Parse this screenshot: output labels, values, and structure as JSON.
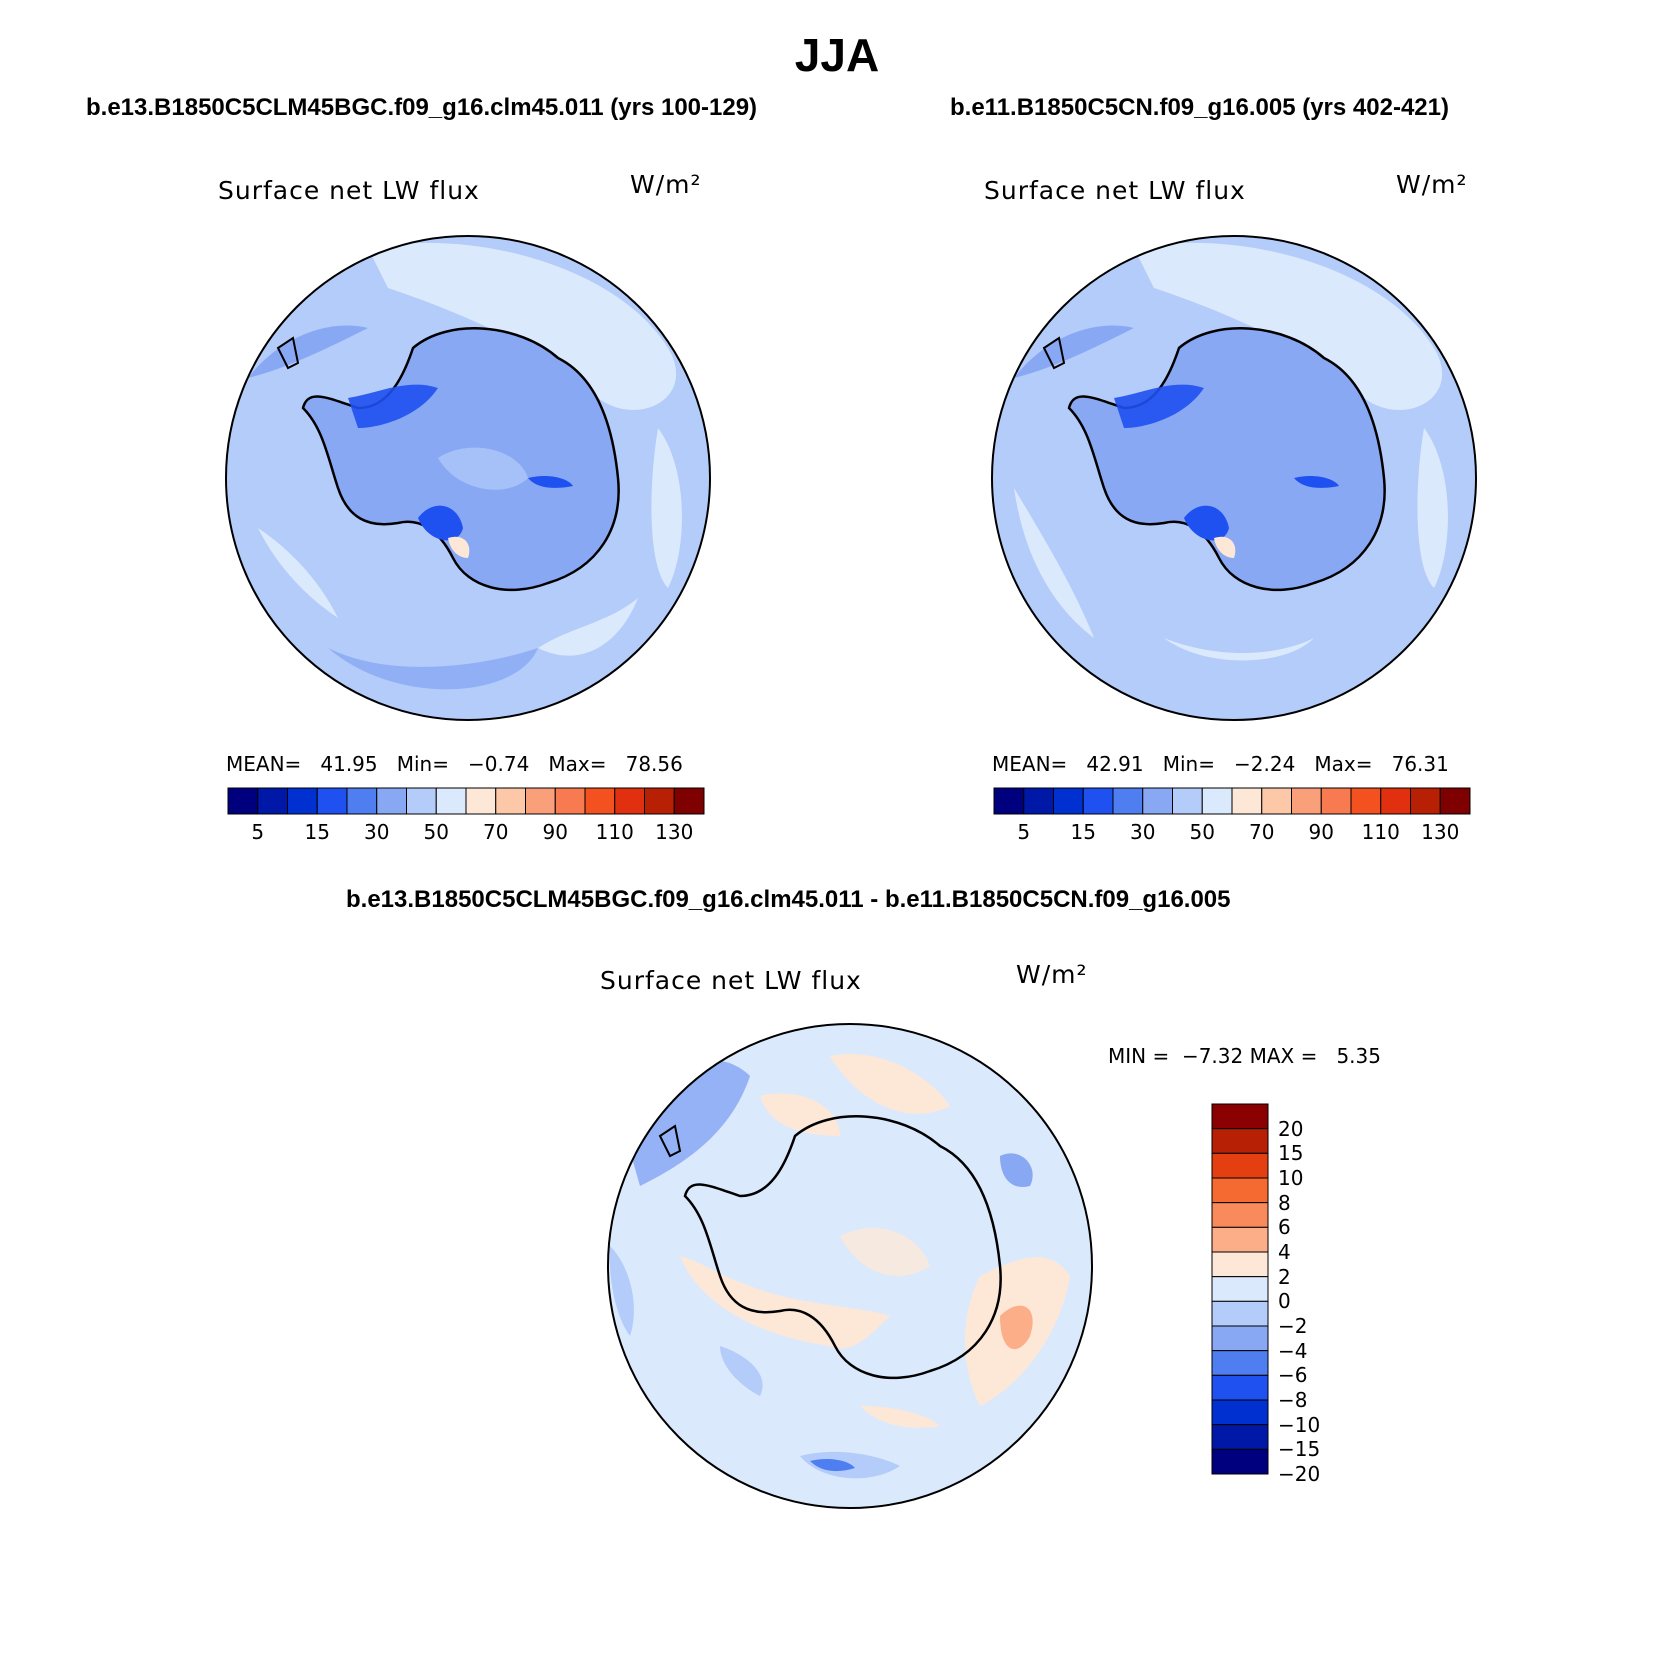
{
  "title": "JJA",
  "panels": [
    {
      "case_title": "b.e13.B1850C5CLM45BGC.f09_g16.clm45.011 (yrs 100-129)",
      "label": "Surface net LW flux",
      "units": "W/m²",
      "stats": {
        "mean_label": "MEAN=",
        "mean": "41.95",
        "min_label": "Min=",
        "min": "−0.74",
        "max_label": "Max=",
        "max": "78.56"
      }
    },
    {
      "case_title": "b.e11.B1850C5CN.f09_g16.005 (yrs 402-421)",
      "label": "Surface net LW flux",
      "units": "W/m²",
      "stats": {
        "mean_label": "MEAN=",
        "mean": "42.91",
        "min_label": "Min=",
        "min": "−2.24",
        "max_label": "Max=",
        "max": "76.31"
      }
    }
  ],
  "diff_panel": {
    "case_title": "b.e13.B1850C5CLM45BGC.f09_g16.clm45.011 - b.e11.B1850C5CN.f09_g16.005",
    "label": "Surface net LW flux",
    "units": "W/m²",
    "stats": {
      "min_label": "MIN =",
      "min": "−7.32",
      "max_label": "MAX =",
      "max": "5.35"
    }
  },
  "abs_colorbar": {
    "colors": [
      "#00007f",
      "#0018a8",
      "#0030d0",
      "#1f50f0",
      "#4f7ef0",
      "#88a8f4",
      "#b4ccfa",
      "#dbe9fc",
      "#fde8d8",
      "#fcc8a8",
      "#f9a07a",
      "#f77a50",
      "#f35220",
      "#e03010",
      "#b82005",
      "#7f0000"
    ],
    "ticks": [
      "5",
      "15",
      "30",
      "50",
      "70",
      "90",
      "110",
      "130"
    ]
  },
  "diff_colorbar": {
    "colors": [
      "#00007f",
      "#0018a8",
      "#0030d0",
      "#1f50f0",
      "#4f7ef0",
      "#88a8f4",
      "#b4ccfa",
      "#dbe9fc",
      "#fde8d8",
      "#fcae88",
      "#f98a5c",
      "#f56a30",
      "#e33f10",
      "#b82005",
      "#8b0000"
    ],
    "ticks": [
      "20",
      "15",
      "10",
      "8",
      "6",
      "4",
      "2",
      "0",
      "−2",
      "−4",
      "−6",
      "−8",
      "−10",
      "−15",
      "−20"
    ]
  },
  "chart_data": {
    "type": "heatmap",
    "projection": "south polar stereographic",
    "season": "JJA",
    "variable": "Surface net LW flux",
    "units": "W/m²",
    "maps": [
      {
        "case": "b.e13.B1850C5CLM45BGC.f09_g16.clm45.011 (yrs 100-129)",
        "mean": 41.95,
        "min": -0.74,
        "max": 78.56,
        "contour_levels": [
          5,
          10,
          15,
          20,
          30,
          40,
          50,
          60,
          70,
          80,
          90,
          100,
          110,
          120,
          130
        ]
      },
      {
        "case": "b.e11.B1850C5CN.f09_g16.005 (yrs 402-421)",
        "mean": 42.91,
        "min": -2.24,
        "max": 76.31,
        "contour_levels": [
          5,
          10,
          15,
          20,
          30,
          40,
          50,
          60,
          70,
          80,
          90,
          100,
          110,
          120,
          130
        ]
      },
      {
        "case": "b.e13.B1850C5CLM45BGC.f09_g16.clm45.011 - b.e11.B1850C5CN.f09_g16.005",
        "min": -7.32,
        "max": 5.35,
        "contour_levels": [
          -20,
          -15,
          -10,
          -8,
          -6,
          -4,
          -2,
          0,
          2,
          4,
          6,
          8,
          10,
          15,
          20
        ]
      }
    ]
  }
}
